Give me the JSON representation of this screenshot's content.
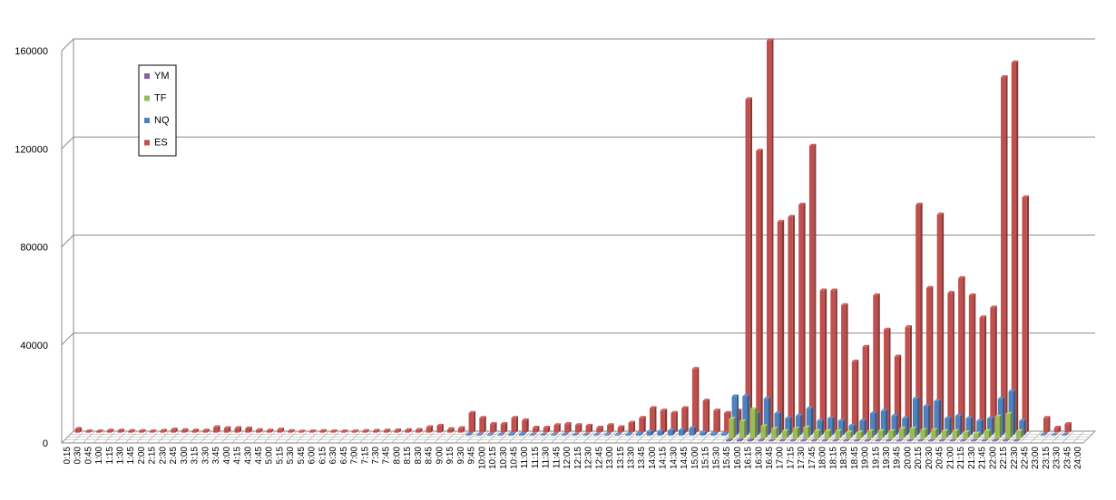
{
  "chart_data": {
    "type": "bar",
    "title": "",
    "xlabel": "",
    "ylabel": "",
    "ylim": [
      0,
      160000
    ],
    "yticks": [
      0,
      40000,
      80000,
      120000,
      160000
    ],
    "grid": "horizontal",
    "legend_position": "upper-left",
    "categories": [
      "0:15",
      "0:30",
      "0:45",
      "1:00",
      "1:15",
      "1:30",
      "1:45",
      "2:00",
      "2:15",
      "2:30",
      "2:45",
      "3:00",
      "3:15",
      "3:30",
      "3:45",
      "4:00",
      "4:15",
      "4:30",
      "4:45",
      "5:00",
      "5:15",
      "5:30",
      "5:45",
      "6:00",
      "6:15",
      "6:30",
      "6:45",
      "7:00",
      "7:15",
      "7:30",
      "7:45",
      "8:00",
      "8:15",
      "8:30",
      "8:45",
      "9:00",
      "9:15",
      "9:30",
      "9:45",
      "10:00",
      "10:15",
      "10:30",
      "10:45",
      "11:00",
      "11:15",
      "11:30",
      "11:45",
      "12:00",
      "12:15",
      "12:30",
      "12:45",
      "13:00",
      "13:15",
      "13:30",
      "13:45",
      "14:00",
      "14:15",
      "14:30",
      "14:45",
      "15:00",
      "15:15",
      "15:30",
      "15:45",
      "16:00",
      "16:15",
      "16:30",
      "16:45",
      "17:00",
      "17:15",
      "17:30",
      "17:45",
      "18:00",
      "18:15",
      "18:30",
      "18:45",
      "19:00",
      "19:15",
      "19:30",
      "19:45",
      "20:00",
      "20:15",
      "20:30",
      "20:45",
      "21:00",
      "21:15",
      "21:30",
      "21:45",
      "22:00",
      "22:15",
      "22:30",
      "22:45",
      "23:00",
      "23:15",
      "23:30",
      "23:45",
      "24:00"
    ],
    "series": [
      {
        "name": "ES",
        "color": "#C0504D",
        "values": [
          1500,
          500,
          500,
          800,
          800,
          600,
          600,
          500,
          700,
          1200,
          1000,
          800,
          800,
          2200,
          1800,
          1800,
          1700,
          1000,
          800,
          1200,
          600,
          400,
          500,
          600,
          500,
          500,
          500,
          600,
          700,
          800,
          900,
          1000,
          1100,
          2200,
          2800,
          1400,
          1800,
          8000,
          6000,
          3500,
          3500,
          6000,
          5000,
          2000,
          2000,
          3000,
          3500,
          3000,
          2800,
          2000,
          3000,
          2200,
          4000,
          6000,
          10000,
          9000,
          8000,
          10000,
          26000,
          13000,
          9000,
          8000,
          9000,
          136000,
          115000,
          160000,
          86000,
          88000,
          93000,
          117000,
          58000,
          58000,
          52000,
          29000,
          35000,
          56000,
          42000,
          31000,
          43000,
          93000,
          59000,
          89000,
          57000,
          63000,
          56000,
          47000,
          51000,
          145000,
          151000,
          96000,
          0,
          6000,
          2000,
          3500,
          0,
          0
        ]
      },
      {
        "name": "NQ",
        "color": "#4F81BD",
        "values": [
          0,
          0,
          0,
          0,
          0,
          0,
          0,
          0,
          0,
          0,
          0,
          0,
          0,
          0,
          0,
          0,
          0,
          0,
          0,
          0,
          0,
          0,
          0,
          0,
          0,
          0,
          0,
          0,
          0,
          0,
          0,
          0,
          0,
          0,
          0,
          0,
          0,
          500,
          400,
          400,
          400,
          600,
          600,
          300,
          300,
          400,
          400,
          300,
          300,
          300,
          400,
          400,
          500,
          800,
          1500,
          1600,
          2000,
          2200,
          3000,
          1200,
          800,
          800,
          16000,
          16000,
          9000,
          15000,
          9000,
          7000,
          8000,
          11000,
          6000,
          7000,
          6000,
          4000,
          6000,
          9000,
          10000,
          8000,
          7000,
          15000,
          12000,
          14000,
          7000,
          8000,
          7000,
          6000,
          7000,
          15000,
          18000,
          6000,
          0,
          400,
          200,
          300,
          0,
          0
        ]
      },
      {
        "name": "TF",
        "color": "#9BBB59",
        "values": [
          0,
          0,
          0,
          0,
          0,
          0,
          0,
          0,
          0,
          0,
          0,
          0,
          0,
          0,
          0,
          0,
          0,
          0,
          0,
          0,
          0,
          0,
          0,
          0,
          0,
          0,
          0,
          0,
          0,
          0,
          0,
          0,
          0,
          0,
          0,
          0,
          0,
          0,
          0,
          0,
          0,
          0,
          0,
          0,
          0,
          0,
          0,
          0,
          0,
          0,
          0,
          0,
          0,
          0,
          0,
          0,
          0,
          0,
          0,
          0,
          0,
          0,
          8000,
          7000,
          12000,
          5000,
          4000,
          3000,
          4000,
          4500,
          3000,
          3000,
          3000,
          2500,
          2500,
          3000,
          3000,
          3000,
          4000,
          4000,
          3500,
          3500,
          3000,
          3000,
          2500,
          2000,
          3000,
          9000,
          10000,
          3000,
          0,
          0,
          0,
          0,
          0,
          0
        ]
      },
      {
        "name": "YM",
        "color": "#8064A2",
        "values": [
          0,
          0,
          0,
          0,
          0,
          0,
          0,
          0,
          0,
          0,
          0,
          0,
          0,
          0,
          0,
          0,
          0,
          0,
          0,
          0,
          0,
          0,
          0,
          0,
          0,
          0,
          0,
          0,
          0,
          0,
          0,
          0,
          0,
          0,
          0,
          0,
          0,
          0,
          0,
          0,
          0,
          0,
          0,
          0,
          0,
          0,
          0,
          0,
          0,
          0,
          0,
          0,
          0,
          0,
          0,
          0,
          0,
          0,
          0,
          0,
          0,
          0,
          500,
          500,
          500,
          400,
          300,
          300,
          300,
          300,
          300,
          300,
          300,
          300,
          300,
          300,
          300,
          300,
          300,
          300,
          300,
          300,
          300,
          300,
          300,
          300,
          300,
          400,
          400,
          300,
          0,
          0,
          0,
          0,
          0,
          0
        ]
      }
    ],
    "legend": [
      "YM",
      "TF",
      "NQ",
      "ES"
    ]
  }
}
